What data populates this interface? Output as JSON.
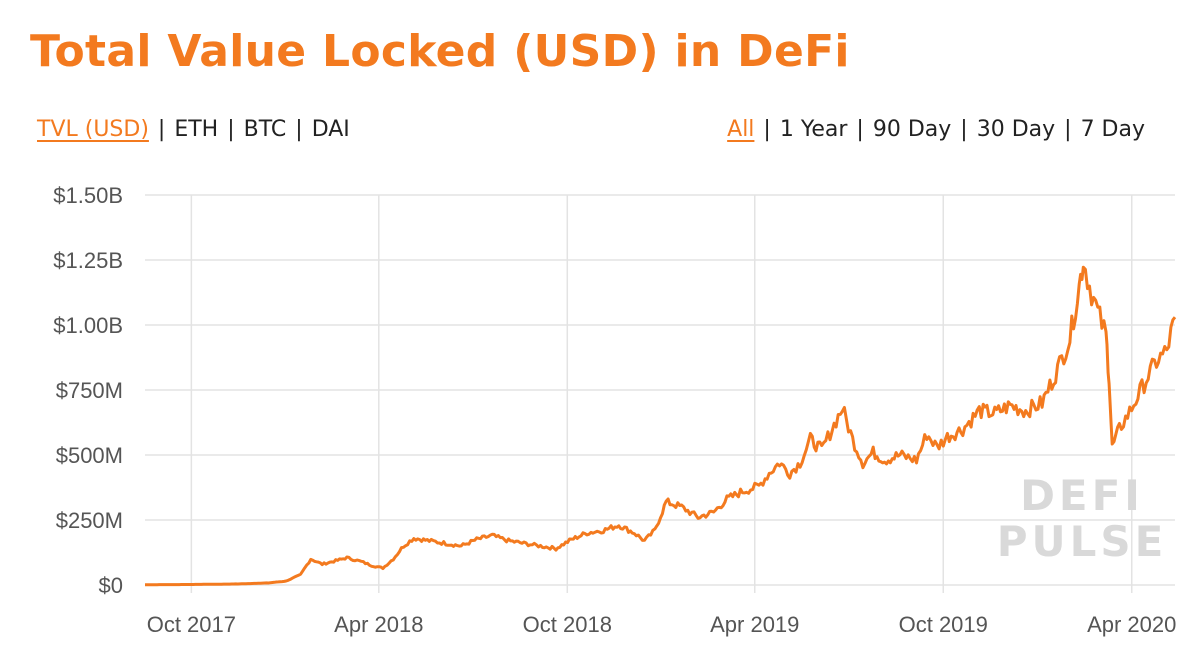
{
  "header": {
    "title": "Total Value Locked (USD) in DeFi"
  },
  "metric_options": [
    "TVL (USD)",
    "ETH",
    "BTC",
    "DAI"
  ],
  "metric_active": 0,
  "range_options": [
    "All",
    "1 Year",
    "90 Day",
    "30 Day",
    "7 Day"
  ],
  "range_active": 0,
  "separator": "|",
  "watermark": {
    "line1": "DEFI",
    "line2": "PULSE"
  },
  "colors": {
    "accent": "#f37a1f",
    "line": "#f37a1f",
    "grid": "#e3e3e3",
    "watermark": "#d9d9d9"
  },
  "chart_data": {
    "type": "line",
    "title": "Total Value Locked (USD) in DeFi",
    "xlabel": "",
    "ylabel": "",
    "x_range": [
      "2017-08-17",
      "2020-05-13"
    ],
    "ylim": [
      0,
      1500000000
    ],
    "y_ticks": [
      {
        "value": 0,
        "label": "$0"
      },
      {
        "value": 250000000,
        "label": "$250M"
      },
      {
        "value": 500000000,
        "label": "$500M"
      },
      {
        "value": 750000000,
        "label": "$750M"
      },
      {
        "value": 1000000000,
        "label": "$1.00B"
      },
      {
        "value": 1250000000,
        "label": "$1.25B"
      },
      {
        "value": 1500000000,
        "label": "$1.50B"
      }
    ],
    "x_ticks": [
      {
        "date": "2017-10-01",
        "label": "Oct 2017"
      },
      {
        "date": "2018-04-01",
        "label": "Apr 2018"
      },
      {
        "date": "2018-10-01",
        "label": "Oct 2018"
      },
      {
        "date": "2019-04-01",
        "label": "Apr 2019"
      },
      {
        "date": "2019-10-01",
        "label": "Oct 2019"
      },
      {
        "date": "2020-04-01",
        "label": "Apr 2020"
      }
    ],
    "grid": true,
    "legend": "none",
    "series": [
      {
        "values": [
          [
            "2017-08-17",
            1000000
          ],
          [
            "2017-10-01",
            2000000
          ],
          [
            "2017-11-15",
            4000000
          ],
          [
            "2017-12-15",
            8000000
          ],
          [
            "2018-01-01",
            15000000
          ],
          [
            "2018-01-15",
            40000000
          ],
          [
            "2018-01-25",
            100000000
          ],
          [
            "2018-02-05",
            80000000
          ],
          [
            "2018-02-20",
            95000000
          ],
          [
            "2018-03-01",
            105000000
          ],
          [
            "2018-03-15",
            90000000
          ],
          [
            "2018-03-25",
            75000000
          ],
          [
            "2018-04-05",
            65000000
          ],
          [
            "2018-04-15",
            100000000
          ],
          [
            "2018-04-25",
            150000000
          ],
          [
            "2018-05-05",
            180000000
          ],
          [
            "2018-05-20",
            170000000
          ],
          [
            "2018-06-05",
            160000000
          ],
          [
            "2018-06-20",
            150000000
          ],
          [
            "2018-07-05",
            175000000
          ],
          [
            "2018-07-20",
            190000000
          ],
          [
            "2018-08-05",
            170000000
          ],
          [
            "2018-08-20",
            160000000
          ],
          [
            "2018-09-05",
            150000000
          ],
          [
            "2018-09-20",
            140000000
          ],
          [
            "2018-10-05",
            175000000
          ],
          [
            "2018-10-20",
            200000000
          ],
          [
            "2018-11-05",
            210000000
          ],
          [
            "2018-11-20",
            230000000
          ],
          [
            "2018-12-05",
            200000000
          ],
          [
            "2018-12-15",
            170000000
          ],
          [
            "2018-12-25",
            210000000
          ],
          [
            "2019-01-05",
            320000000
          ],
          [
            "2019-01-20",
            300000000
          ],
          [
            "2019-02-05",
            260000000
          ],
          [
            "2019-02-20",
            280000000
          ],
          [
            "2019-03-05",
            330000000
          ],
          [
            "2019-03-20",
            360000000
          ],
          [
            "2019-04-05",
            380000000
          ],
          [
            "2019-04-15",
            430000000
          ],
          [
            "2019-04-25",
            470000000
          ],
          [
            "2019-05-05",
            430000000
          ],
          [
            "2019-05-15",
            470000000
          ],
          [
            "2019-05-25",
            560000000
          ],
          [
            "2019-06-05",
            520000000
          ],
          [
            "2019-06-15",
            600000000
          ],
          [
            "2019-06-25",
            680000000
          ],
          [
            "2019-07-05",
            560000000
          ],
          [
            "2019-07-15",
            470000000
          ],
          [
            "2019-07-25",
            510000000
          ],
          [
            "2019-08-05",
            480000000
          ],
          [
            "2019-08-20",
            500000000
          ],
          [
            "2019-09-05",
            480000000
          ],
          [
            "2019-09-15",
            580000000
          ],
          [
            "2019-09-25",
            530000000
          ],
          [
            "2019-10-05",
            570000000
          ],
          [
            "2019-10-20",
            600000000
          ],
          [
            "2019-11-05",
            670000000
          ],
          [
            "2019-11-20",
            660000000
          ],
          [
            "2019-12-05",
            690000000
          ],
          [
            "2019-12-20",
            670000000
          ],
          [
            "2020-01-05",
            700000000
          ],
          [
            "2020-01-20",
            830000000
          ],
          [
            "2020-02-01",
            950000000
          ],
          [
            "2020-02-10",
            1150000000
          ],
          [
            "2020-02-14",
            1250000000
          ],
          [
            "2020-02-20",
            1150000000
          ],
          [
            "2020-02-28",
            1050000000
          ],
          [
            "2020-03-07",
            960000000
          ],
          [
            "2020-03-10",
            800000000
          ],
          [
            "2020-03-13",
            530000000
          ],
          [
            "2020-03-20",
            600000000
          ],
          [
            "2020-04-01",
            680000000
          ],
          [
            "2020-04-15",
            790000000
          ],
          [
            "2020-04-25",
            860000000
          ],
          [
            "2020-05-05",
            900000000
          ],
          [
            "2020-05-13",
            1030000000
          ]
        ]
      }
    ]
  }
}
